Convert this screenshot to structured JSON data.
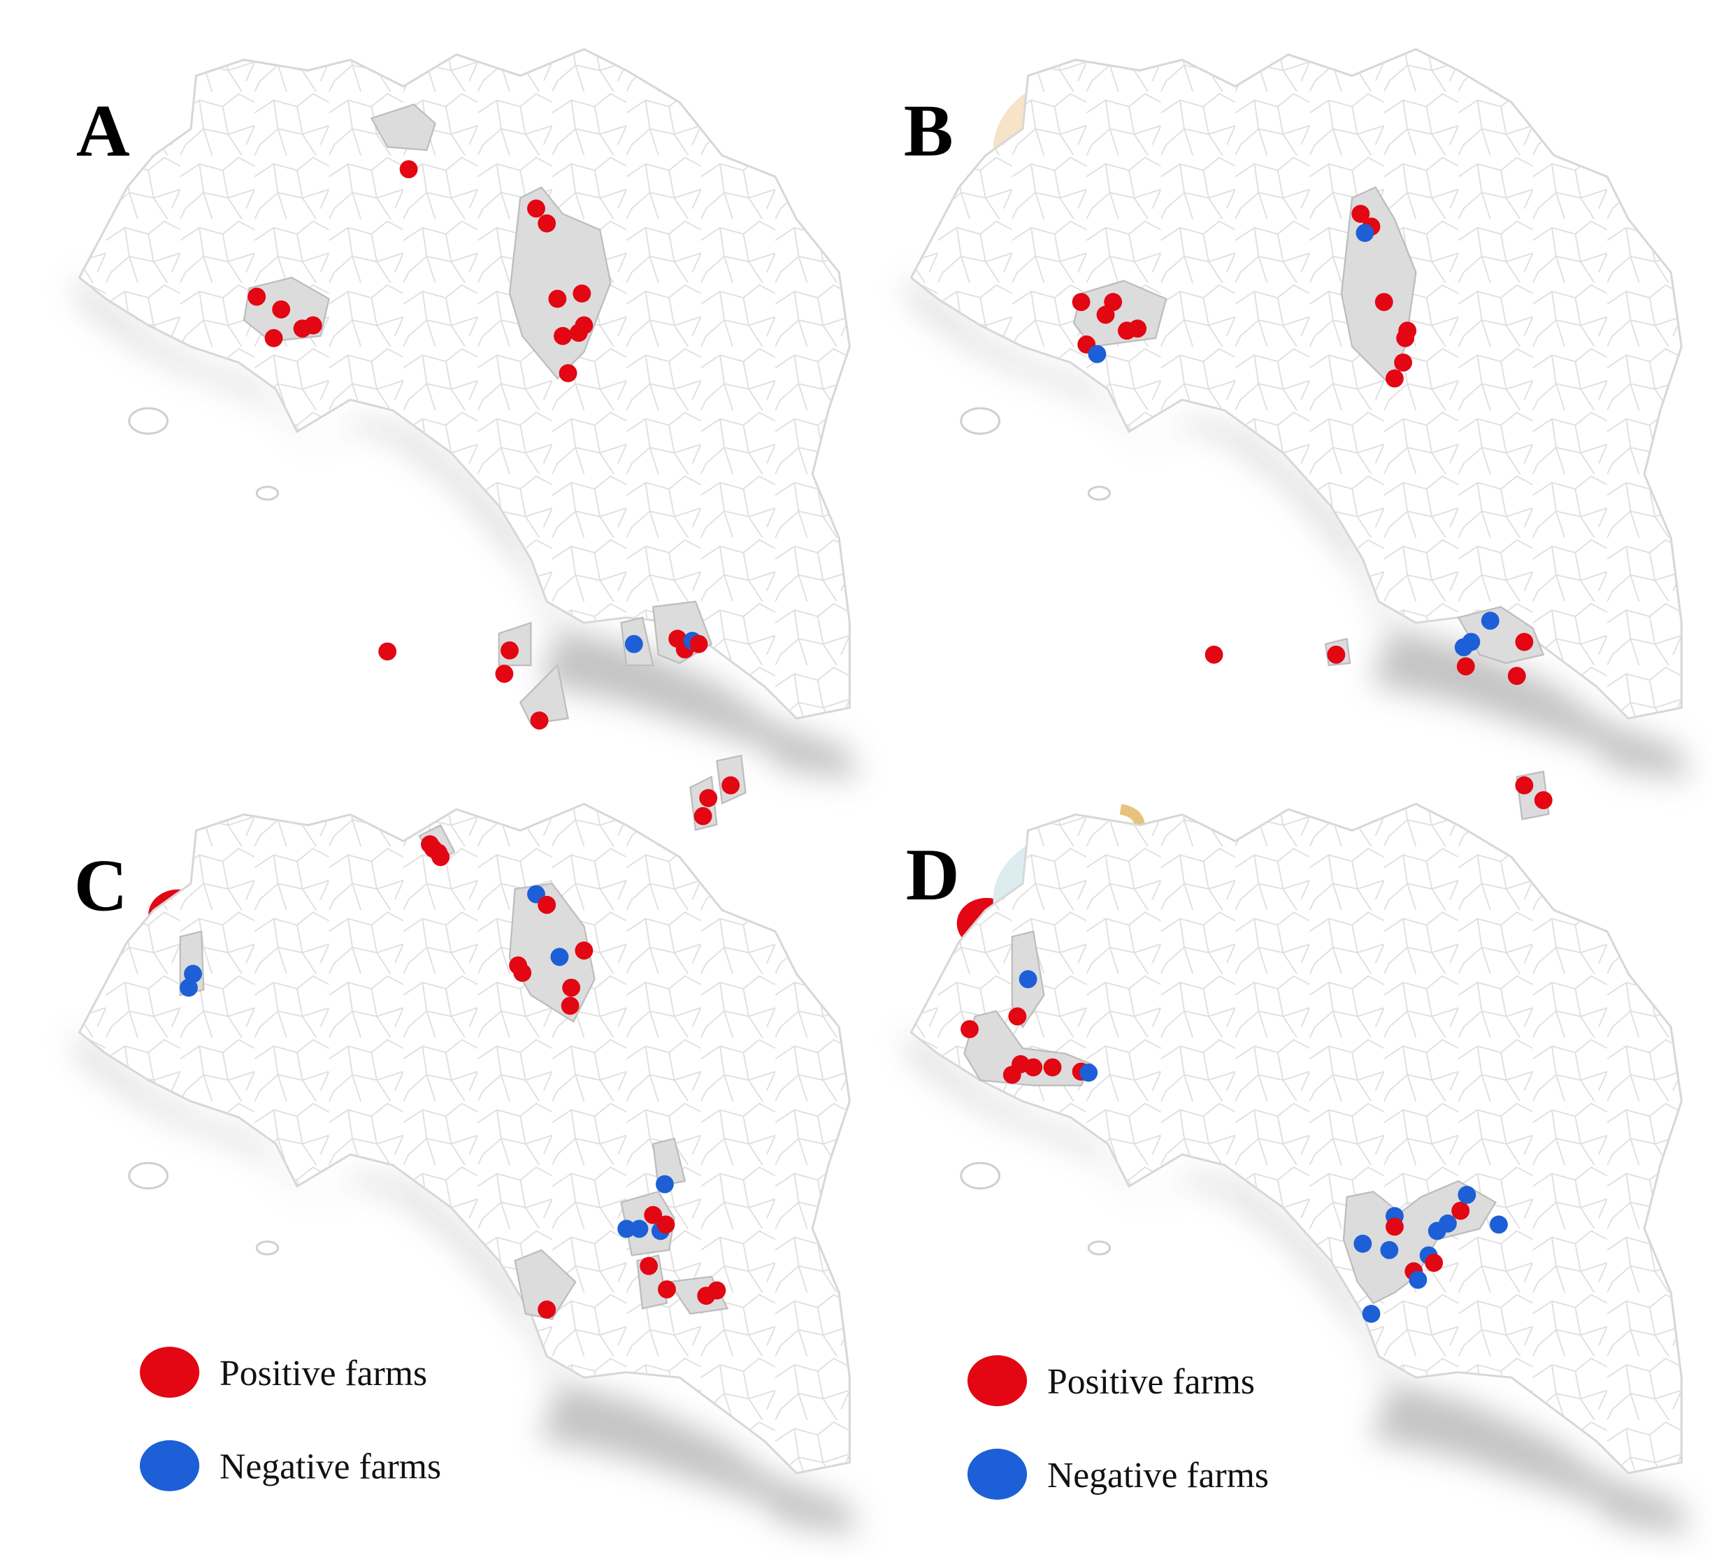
{
  "colors": {
    "positive": "#e30613",
    "negative": "#1d5fd6",
    "map_fill": "#ffffff",
    "map_border": "#d7d7d7",
    "highlight_fill": "#dcdcdc",
    "shadow": "#bdbdbd"
  },
  "panels": [
    {
      "letter": "A",
      "animal": "sheep-icon",
      "legend": {
        "positive": "Positive farms",
        "negative": "Negative farms"
      }
    },
    {
      "letter": "B",
      "animal": "goat-icon",
      "legend": {
        "positive": "Positive farms",
        "negative": "Negative farms"
      }
    },
    {
      "letter": "C",
      "animal": "cow-icon",
      "legend": {
        "positive": "Positive farms",
        "negative": "Negative farms"
      }
    },
    {
      "letter": "D",
      "animal": "buffalo-icon",
      "legend": {
        "positive": "Positive farms",
        "negative": "Negative farms"
      }
    }
  ]
}
